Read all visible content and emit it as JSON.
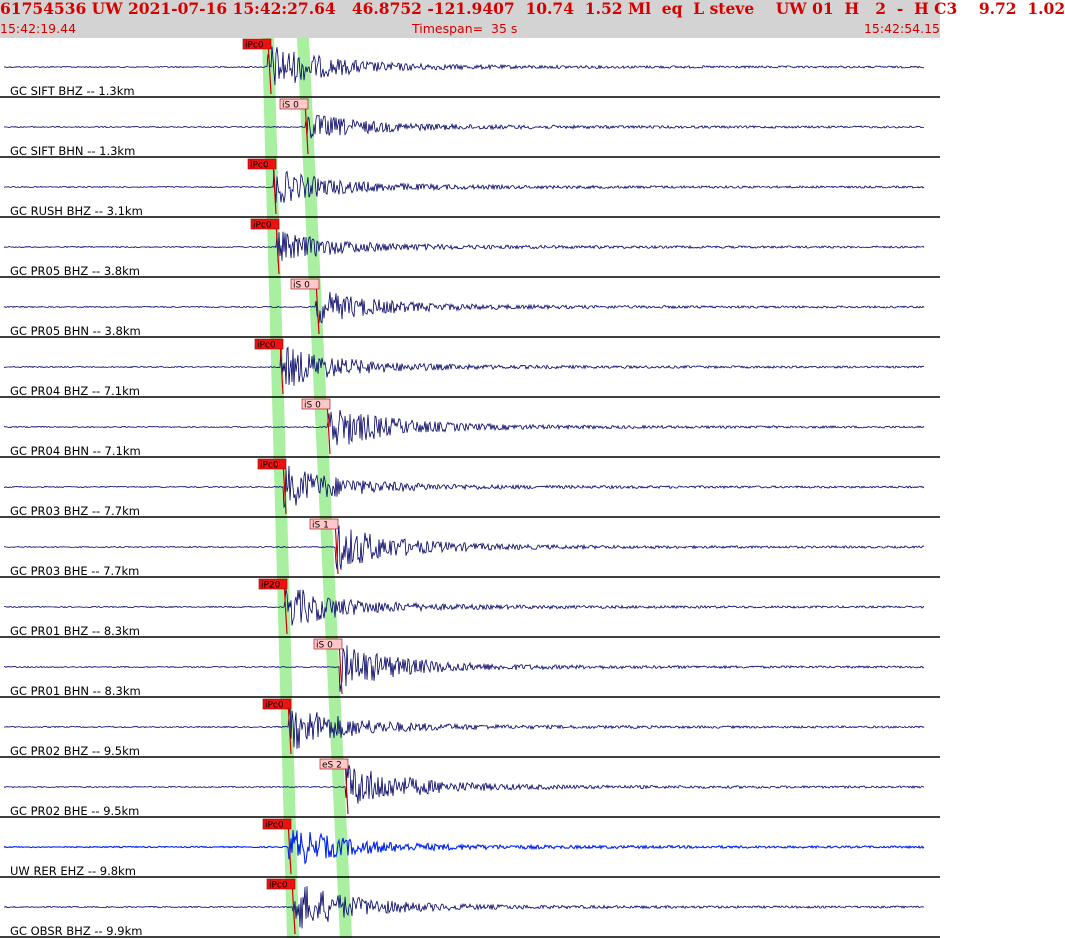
{
  "header": {
    "event_line": "61754536 UW 2021-07-16 15:42:27.64   46.8752 -121.9407  10.74  1.52 Ml  eq  L steve    UW 01  H   2  -  H C3    9.72  1.02",
    "start_time": "15:42:19.44",
    "timespan_label": "Timespan=  35 s",
    "end_time": "15:42:54.15"
  },
  "colors": {
    "header_bg": "#d3d3d3",
    "header_text": "#d40000",
    "trace": "#000066",
    "trace_highlight": "#0022ee",
    "pick_band": "#a8f0a0",
    "pick_p_fill": "#ee1111",
    "pick_s_fill": "#ffc8c8",
    "divider": "#000000"
  },
  "traces": [
    {
      "label": "GC SIFT BHZ -- 1.3km",
      "pick": "iPc0",
      "pickType": "P",
      "pickX": 268,
      "onset": 268,
      "amp": 22
    },
    {
      "label": "GC SIFT BHN -- 1.3km",
      "pick": "iS 0",
      "pickType": "S",
      "pickX": 305,
      "onset": 306,
      "amp": 12
    },
    {
      "label": "GC RUSH BHZ -- 3.1km",
      "pick": "iPc0",
      "pickType": "P",
      "pickX": 273,
      "onset": 274,
      "amp": 16
    },
    {
      "label": "GC PR05 BHZ -- 3.8km",
      "pick": "iPc0",
      "pickType": "P",
      "pickX": 276,
      "onset": 277,
      "amp": 14
    },
    {
      "label": "GC PR05 BHN -- 3.8km",
      "pick": "iS 0",
      "pickType": "S",
      "pickX": 316,
      "onset": 316,
      "amp": 16
    },
    {
      "label": "GC PR04 BHZ -- 7.1km",
      "pick": "iPc0",
      "pickType": "P",
      "pickX": 280,
      "onset": 281,
      "amp": 20
    },
    {
      "label": "GC PR04 BHN -- 7.1km",
      "pick": "iS 0",
      "pickType": "S",
      "pickX": 327,
      "onset": 328,
      "amp": 22
    },
    {
      "label": "GC PR03 BHZ -- 7.7km",
      "pick": "iPc0",
      "pickType": "P",
      "pickX": 283,
      "onset": 284,
      "amp": 20
    },
    {
      "label": "GC PR03 BHE -- 7.7km",
      "pick": "iS 1",
      "pickType": "S",
      "pickX": 335,
      "onset": 336,
      "amp": 22
    },
    {
      "label": "GC PR01 BHZ -- 8.3km",
      "pick": "iP20",
      "pickType": "P",
      "pickX": 284,
      "onset": 285,
      "amp": 20
    },
    {
      "label": "GC PR01 BHN -- 8.3km",
      "pick": "iS 0",
      "pickType": "S",
      "pickX": 339,
      "onset": 340,
      "amp": 22
    },
    {
      "label": "GC PR02 BHZ -- 9.5km",
      "pick": "iPc0",
      "pickType": "P",
      "pickX": 288,
      "onset": 289,
      "amp": 22
    },
    {
      "label": "GC PR02 BHE -- 9.5km",
      "pick": "eS 2",
      "pickType": "S",
      "pickX": 345,
      "onset": 346,
      "amp": 22
    },
    {
      "label": "UW RER EHZ -- 9.8km",
      "pick": "iPc0",
      "pickType": "P",
      "pickX": 288,
      "onset": 289,
      "amp": 18,
      "highlight": true
    },
    {
      "label": "GC OBSR BHZ -- 9.9km",
      "pick": "iPc0",
      "pickType": "P",
      "pickX": 292,
      "onset": 293,
      "amp": 24
    }
  ]
}
